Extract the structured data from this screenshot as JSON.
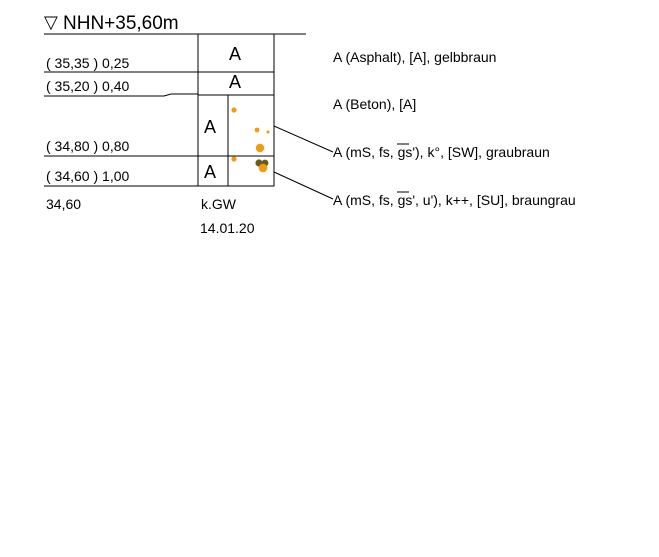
{
  "header": {
    "symbol": "▽",
    "label": "NHN+35,60m"
  },
  "layers": [
    {
      "level": "( 35,35 ) 0,25",
      "soil": "A",
      "description": "A (Asphalt), [A], gelbbraun"
    },
    {
      "level": "( 35,20 ) 0,40",
      "soil": "A",
      "description": "A (Beton), [A]"
    },
    {
      "level": "( 34,80 ) 0,80",
      "soil": "A",
      "description": "A (mS, fs, gs'), k°, [SW], graubraun"
    },
    {
      "level": "( 34,60 ) 1,00",
      "soil": "A",
      "description": "A (mS, fs, gs', u'), k++, [SU], braungrau"
    }
  ],
  "bottom_value": "34,60",
  "groundwater": {
    "label": "k.GW",
    "date": "14.01.20"
  },
  "colors": {
    "dot_orange": "#f59a0e",
    "dot_dark": "#6b5a1e",
    "line": "#000000"
  }
}
